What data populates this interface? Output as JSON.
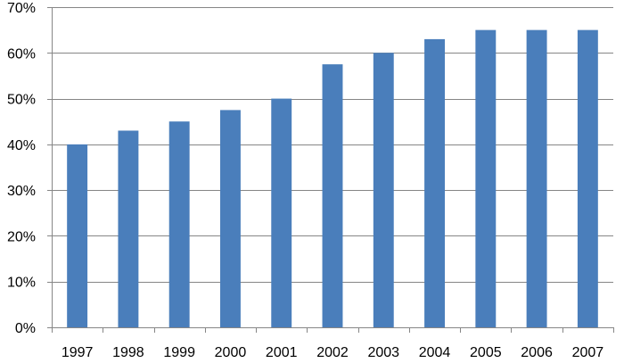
{
  "chart_data": {
    "type": "bar",
    "title": "",
    "xlabel": "",
    "ylabel": "",
    "categories": [
      "1997",
      "1998",
      "1999",
      "2000",
      "2001",
      "2002",
      "2003",
      "2004",
      "2005",
      "2006",
      "2007"
    ],
    "values": [
      40,
      43,
      45,
      47.5,
      50,
      57.5,
      60,
      63,
      65,
      65,
      65
    ],
    "unit": "%",
    "ylim": [
      0,
      70
    ],
    "yticks": [
      0,
      10,
      20,
      30,
      40,
      50,
      60,
      70
    ],
    "ytick_labels": [
      "0%",
      "10%",
      "20%",
      "30%",
      "40%",
      "50%",
      "60%",
      "70%"
    ],
    "grid": "horizontal",
    "legend": "none",
    "colors": {
      "bar": "#4A7EBB",
      "grid": "#868686",
      "axis": "#868686",
      "text": "#000000"
    }
  }
}
